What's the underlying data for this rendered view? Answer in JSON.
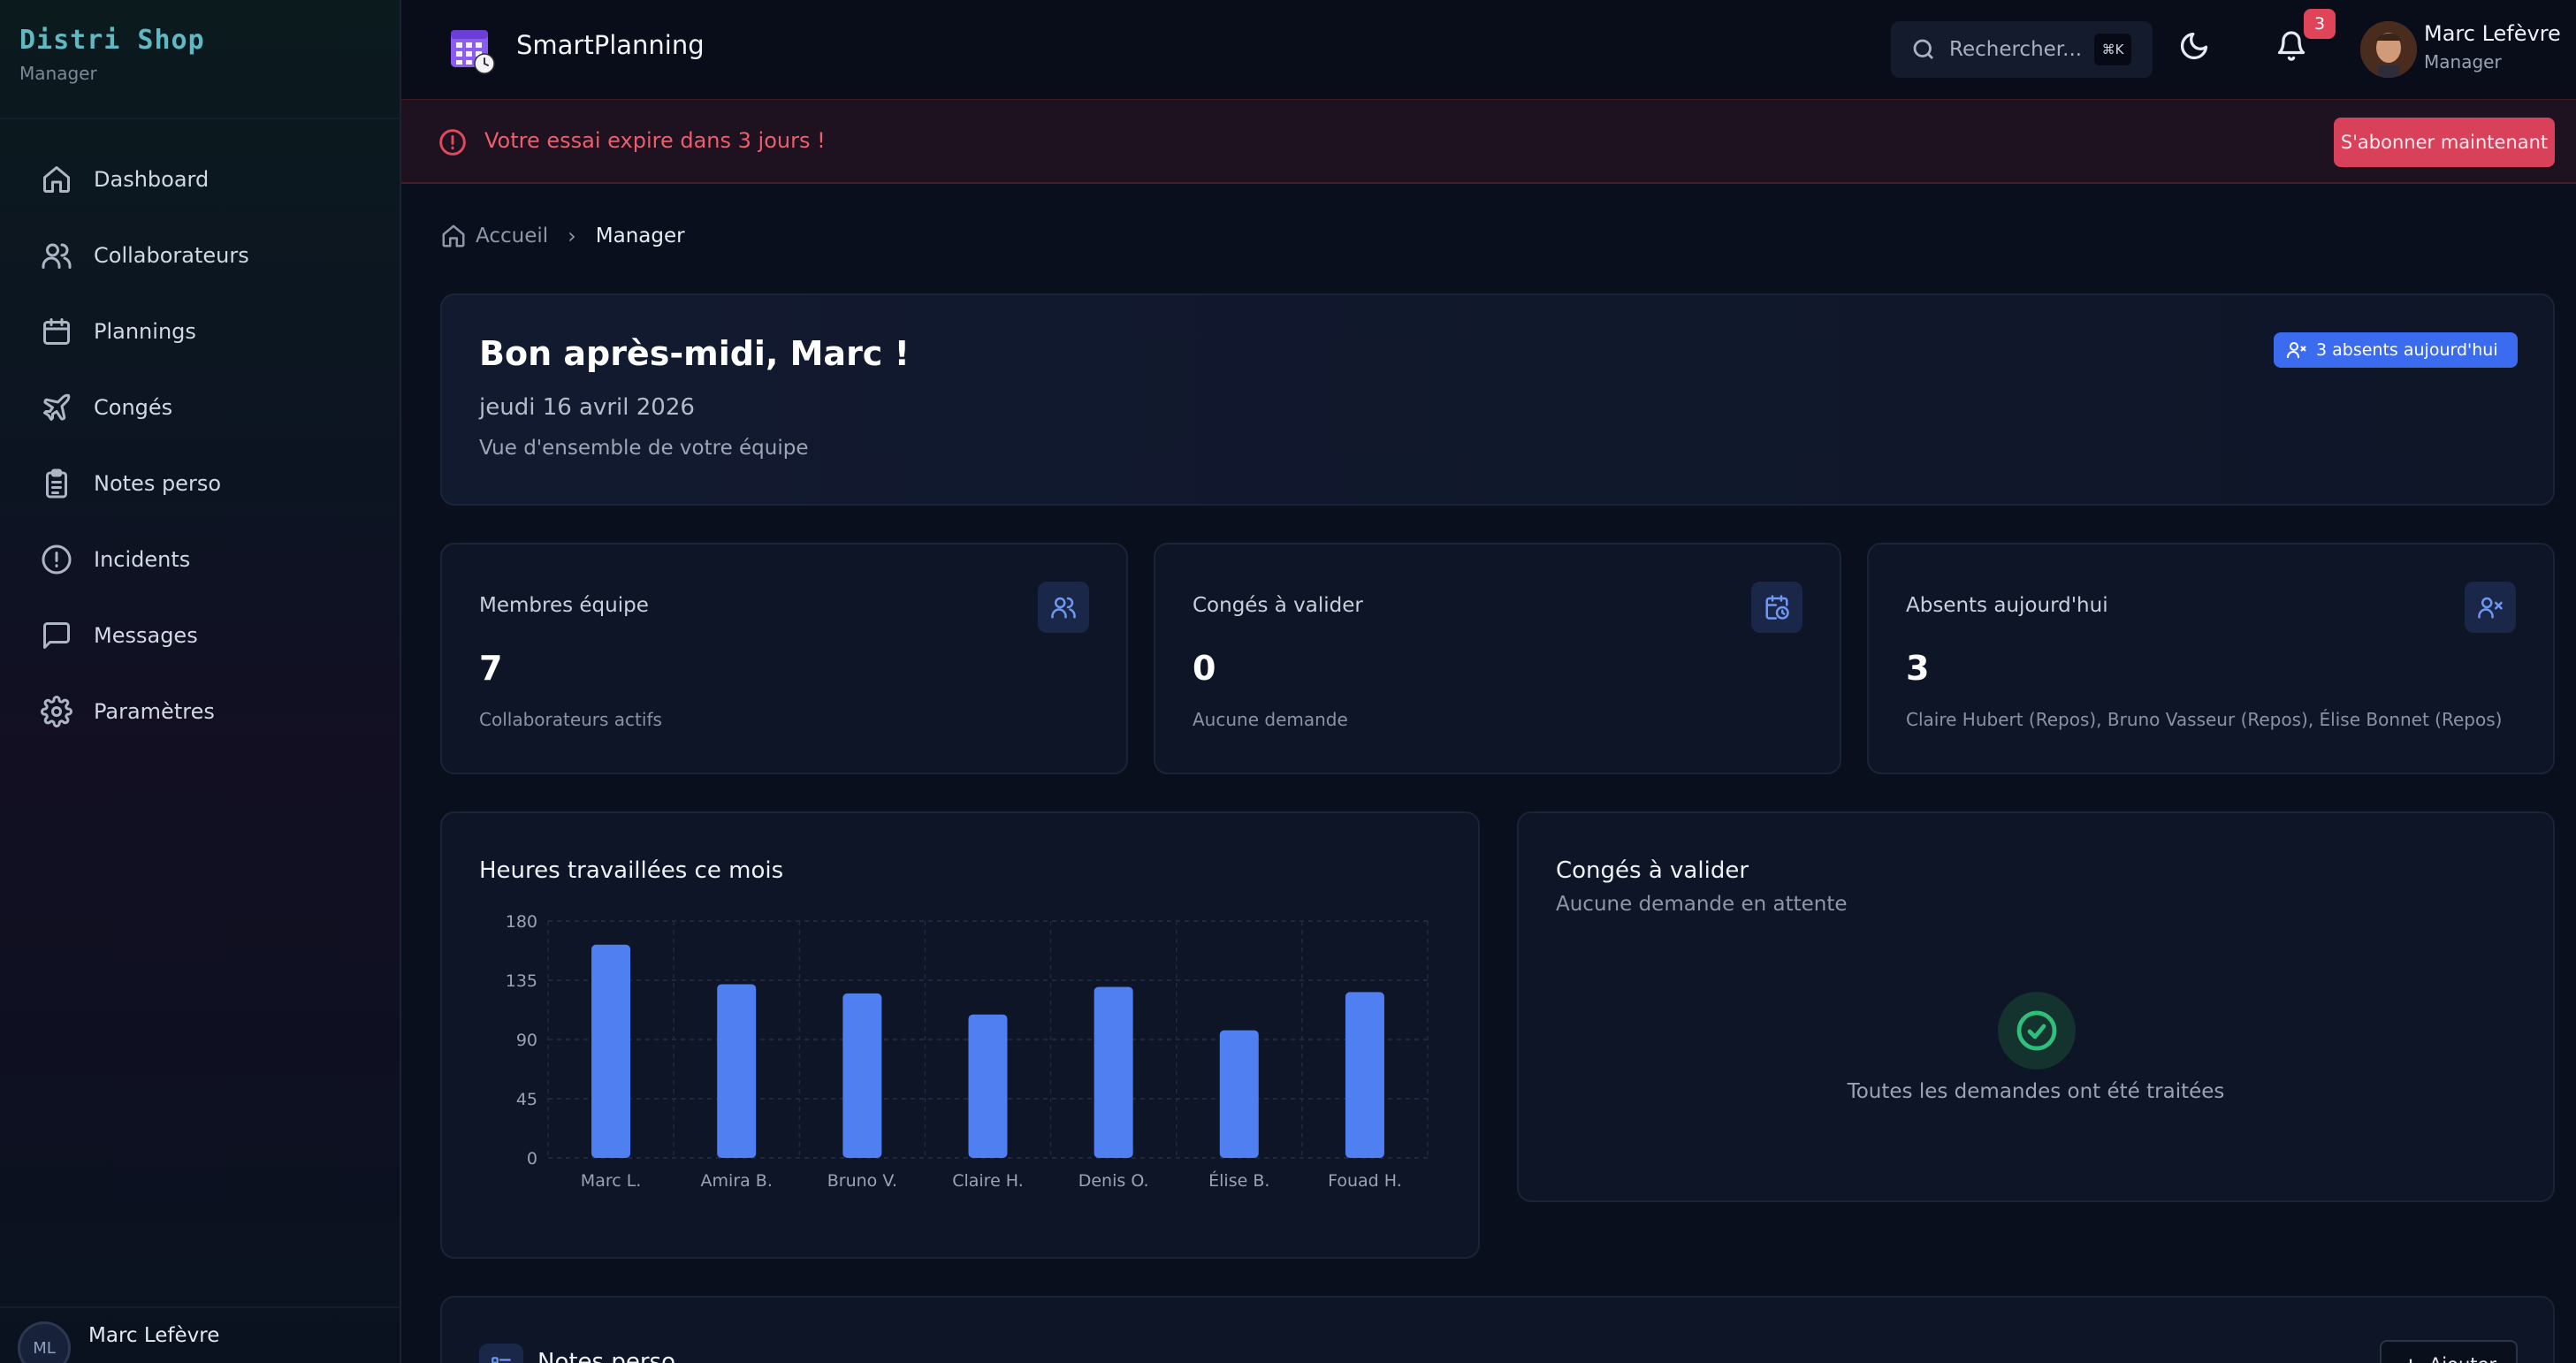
{
  "sidebar": {
    "brand": "Distri Shop",
    "role": "Manager",
    "items": [
      {
        "label": "Dashboard",
        "icon": "home-icon"
      },
      {
        "label": "Collaborateurs",
        "icon": "users-icon"
      },
      {
        "label": "Plannings",
        "icon": "calendar-icon"
      },
      {
        "label": "Congés",
        "icon": "plane-icon"
      },
      {
        "label": "Notes perso",
        "icon": "clipboard-icon"
      },
      {
        "label": "Incidents",
        "icon": "alert-circle-icon"
      },
      {
        "label": "Messages",
        "icon": "message-icon"
      },
      {
        "label": "Paramètres",
        "icon": "gear-icon"
      }
    ],
    "user": {
      "initials": "ML",
      "name": "Marc Lefèvre"
    }
  },
  "topbar": {
    "app_title": "SmartPlanning",
    "search_placeholder": "Rechercher...",
    "search_shortcut": "⌘K",
    "notifications_count": "3",
    "user_name": "Marc Lefèvre",
    "user_role": "Manager"
  },
  "trial": {
    "message": "Votre essai expire dans 3 jours !",
    "button": "S'abonner maintenant"
  },
  "breadcrumb": {
    "home": "Accueil",
    "current": "Manager"
  },
  "hero": {
    "title": "Bon après-midi, Marc !",
    "date": "jeudi 16 avril 2026",
    "subtitle": "Vue d'ensemble de votre équipe",
    "badge": "3 absents aujourd'hui"
  },
  "stats": [
    {
      "label": "Membres équipe",
      "value": "7",
      "sub": "Collaborateurs actifs",
      "icon": "users-icon"
    },
    {
      "label": "Congés à valider",
      "value": "0",
      "sub": "Aucune demande",
      "icon": "calendar-clock-icon"
    },
    {
      "label": "Absents aujourd'hui",
      "value": "3",
      "sub": "Claire Hubert (Repos), Bruno Vasseur (Repos), Élise Bonnet (Repos)",
      "icon": "user-x-icon"
    }
  ],
  "pending": {
    "title": "Congés à valider",
    "subtitle": "Aucune demande en attente",
    "done": "Toutes les demandes ont été traitées"
  },
  "notes": {
    "title": "Notes perso",
    "add": "Ajouter"
  },
  "colors": {
    "accent": "#4f7ff0",
    "danger": "#d9415a",
    "success": "#2fbf7a",
    "brand": "#5fb8c2"
  },
  "chart_data": {
    "type": "bar",
    "title": "Heures travaillées ce mois",
    "categories": [
      "Marc L.",
      "Amira B.",
      "Bruno V.",
      "Claire H.",
      "Denis O.",
      "Élise B.",
      "Fouad H."
    ],
    "values": [
      162,
      132,
      125,
      109,
      130,
      97,
      126
    ],
    "yticks": [
      0,
      45,
      90,
      135,
      180
    ],
    "ylim": [
      0,
      180
    ],
    "grid": true,
    "color": "#4f7ff0"
  }
}
